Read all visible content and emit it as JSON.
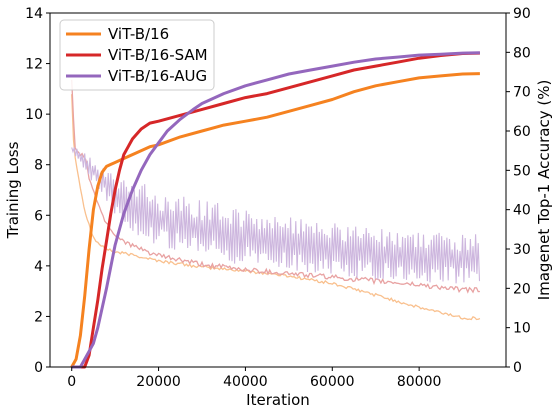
{
  "chart_data": {
    "type": "line",
    "xlabel": "Iteration",
    "ylabel_left": "Training Loss",
    "ylabel_right": "Imagenet Top-1 Accuracy (%)",
    "xlim": [
      -5000,
      100000
    ],
    "ylim_left": [
      0,
      14
    ],
    "ylim_right": [
      0,
      90
    ],
    "x_ticks": [
      0,
      20000,
      40000,
      60000,
      80000
    ],
    "x_tick_labels": [
      "0",
      "20000",
      "40000",
      "60000",
      "80000"
    ],
    "y_left_ticks": [
      0,
      2,
      4,
      6,
      8,
      10,
      12,
      14
    ],
    "y_left_tick_labels": [
      "0",
      "2",
      "4",
      "6",
      "8",
      "10",
      "12",
      "14"
    ],
    "y_right_ticks": [
      0,
      10,
      20,
      30,
      40,
      50,
      60,
      70,
      80,
      90
    ],
    "y_right_tick_labels": [
      "0",
      "10",
      "20",
      "30",
      "40",
      "50",
      "60",
      "70",
      "80",
      "90"
    ],
    "grid": false,
    "legend_position": "top-left",
    "legend": [
      "ViT-B/16",
      "ViT-B/16-SAM",
      "ViT-B/16-AUG"
    ],
    "accuracy_series": [
      {
        "name": "ViT-B/16",
        "color": "#f58220",
        "x": [
          0,
          1000,
          2000,
          3000,
          4000,
          5000,
          6000,
          7000,
          8000,
          9000,
          10000,
          12000,
          15000,
          18000,
          20000,
          25000,
          30000,
          35000,
          40000,
          45000,
          50000,
          55000,
          60000,
          65000,
          70000,
          75000,
          80000,
          85000,
          90000,
          94000
        ],
        "y": [
          0,
          2,
          8,
          18,
          30,
          40,
          46,
          49.5,
          51,
          51.5,
          52,
          53,
          54.5,
          56,
          56.5,
          58.5,
          60,
          61.5,
          62.5,
          63.5,
          65,
          66.5,
          68,
          70,
          71.5,
          72.5,
          73.5,
          74,
          74.5,
          74.6
        ]
      },
      {
        "name": "ViT-B/16-SAM",
        "color": "#d62728",
        "x": [
          0,
          2000,
          3000,
          4000,
          5000,
          6000,
          7000,
          8000,
          9000,
          10000,
          11000,
          12000,
          13000,
          14000,
          16000,
          18000,
          20000,
          25000,
          30000,
          35000,
          40000,
          45000,
          50000,
          55000,
          60000,
          65000,
          70000,
          75000,
          80000,
          85000,
          90000,
          94000
        ],
        "y": [
          0,
          0,
          0,
          3,
          10,
          17,
          25,
          32,
          39,
          45,
          50,
          54,
          56,
          58,
          60.5,
          62,
          62.5,
          64,
          65.5,
          67,
          68.5,
          69.5,
          71,
          72.5,
          74,
          75.5,
          76.5,
          77.5,
          78.5,
          79.2,
          79.7,
          79.8
        ]
      },
      {
        "name": "ViT-B/16-AUG",
        "color": "#9467bd",
        "x": [
          0,
          2000,
          4000,
          5000,
          6000,
          8000,
          10000,
          12000,
          14000,
          16000,
          18000,
          20000,
          22000,
          25000,
          28000,
          30000,
          35000,
          40000,
          45000,
          50000,
          55000,
          60000,
          65000,
          70000,
          75000,
          80000,
          85000,
          90000,
          94000
        ],
        "y": [
          0,
          0,
          4,
          6,
          10,
          20,
          31,
          39,
          45,
          50,
          54,
          57,
          60,
          63,
          65.5,
          67,
          69.5,
          71.5,
          73,
          74.5,
          75.5,
          76.5,
          77.5,
          78.3,
          78.8,
          79.3,
          79.5,
          79.8,
          79.9
        ]
      }
    ],
    "loss_series": [
      {
        "name": "ViT-B/16",
        "color": "#f9c08e",
        "x": [
          0,
          500,
          1500,
          2500,
          3500,
          5000,
          7000,
          10000,
          15000,
          20000,
          30000,
          40000,
          50000,
          60000,
          70000,
          80000,
          90000,
          94000
        ],
        "y": [
          10.8,
          8.6,
          7.6,
          6.6,
          5.9,
          5.1,
          4.75,
          4.55,
          4.4,
          4.2,
          3.95,
          3.8,
          3.6,
          3.3,
          2.85,
          2.35,
          1.95,
          1.92
        ],
        "noise": 0.06
      },
      {
        "name": "ViT-B/16-SAM",
        "color": "#e8a2a2",
        "x": [
          0,
          200,
          800,
          1500,
          3000,
          4000,
          5000,
          7000,
          10000,
          15000,
          20000,
          30000,
          40000,
          50000,
          60000,
          70000,
          80000,
          90000,
          94000
        ],
        "y": [
          11.3,
          10.5,
          8.6,
          8.5,
          8.3,
          7.5,
          7.0,
          6.0,
          5.2,
          4.7,
          4.4,
          4.05,
          3.85,
          3.7,
          3.55,
          3.4,
          3.25,
          3.05,
          3.05
        ],
        "noise": 0.1
      },
      {
        "name": "ViT-B/16-AUG",
        "color": "#cdb6de",
        "x": [
          0,
          1500,
          4000,
          8000,
          12000,
          20000,
          30000,
          40000,
          50000,
          60000,
          70000,
          80000,
          90000,
          94000
        ],
        "y": [
          8.6,
          8.4,
          7.9,
          7.1,
          6.5,
          5.9,
          5.5,
          5.2,
          4.95,
          4.7,
          4.5,
          4.3,
          4.1,
          4.0
        ],
        "band_low": [
          8.5,
          8.2,
          7.5,
          6.5,
          5.5,
          4.7,
          4.3,
          4.0,
          3.8,
          3.6,
          3.45,
          3.35,
          3.25,
          3.2
        ],
        "band_high": [
          8.7,
          8.7,
          8.4,
          7.9,
          7.6,
          7.0,
          6.6,
          6.3,
          6.0,
          5.7,
          5.5,
          5.35,
          5.3,
          5.3
        ]
      }
    ]
  }
}
